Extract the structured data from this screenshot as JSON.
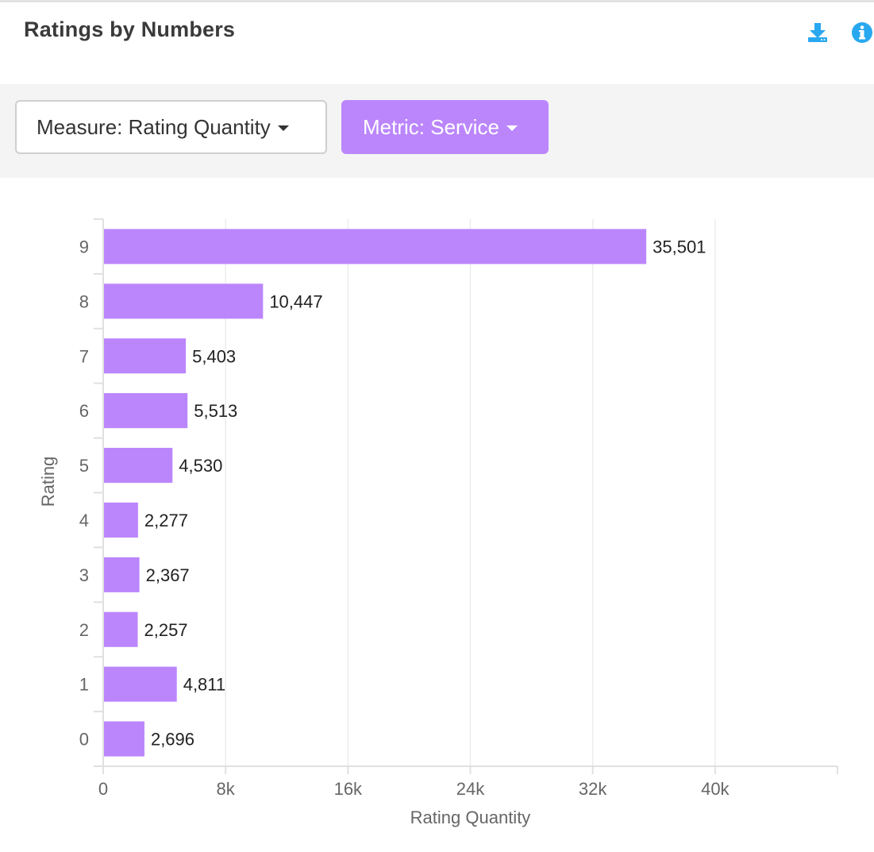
{
  "panel": {
    "title": "Ratings by Numbers",
    "icons": {
      "download": "download-icon",
      "info": "info-icon"
    },
    "icon_color": "#29a8f0"
  },
  "toolbar": {
    "measure_label": "Measure: Rating Quantity",
    "metric_label": "Metric: Service",
    "metric_color": "#bb86fc"
  },
  "chart_data": {
    "type": "bar",
    "orientation": "horizontal",
    "categories": [
      "9",
      "8",
      "7",
      "6",
      "5",
      "4",
      "3",
      "2",
      "1",
      "0"
    ],
    "values": [
      35501,
      10447,
      5403,
      5513,
      4530,
      2277,
      2367,
      2257,
      4811,
      2696
    ],
    "value_labels": [
      "35,501",
      "10,447",
      "5,403",
      "5,513",
      "4,530",
      "2,277",
      "2,367",
      "2,257",
      "4,811",
      "2,696"
    ],
    "xlabel": "Rating Quantity",
    "ylabel": "Rating",
    "xlim": [
      0,
      48000
    ],
    "x_ticks": [
      0,
      8000,
      16000,
      24000,
      32000,
      40000
    ],
    "x_tick_labels": [
      "0",
      "8k",
      "16k",
      "24k",
      "32k",
      "40k"
    ],
    "bar_color": "#bb86fc",
    "grid": true,
    "legend": "none"
  }
}
